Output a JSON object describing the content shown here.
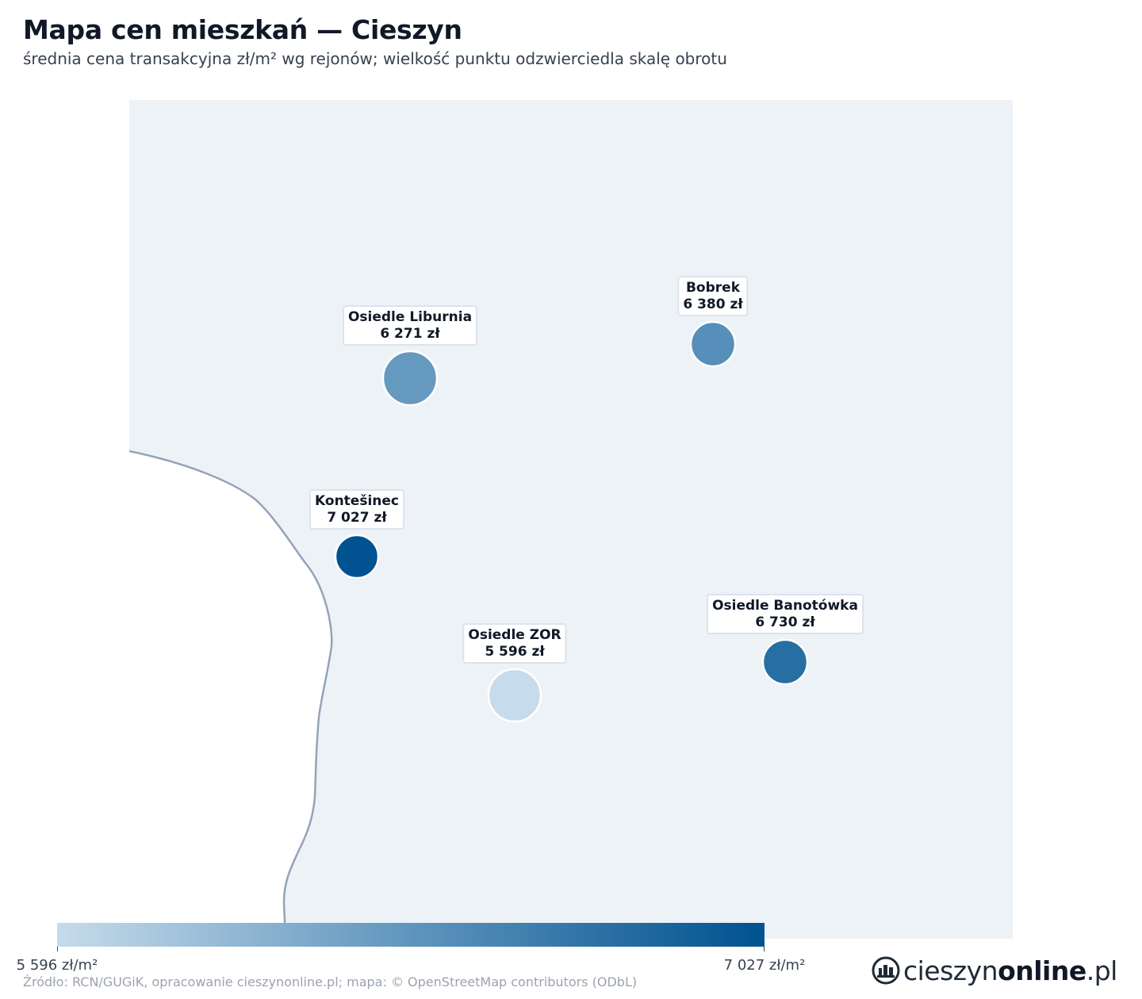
{
  "title": "Mapa cen mieszkań — Cieszyn",
  "subtitle": "średnia cena transakcyjna zł/m² wg rejonów; wielkość punktu odzwierciedla skalę obrotu",
  "colors": {
    "map_background": "#edf2f7",
    "border_line": "#94a3b8",
    "scale_low": "#c6dbeb",
    "scale_mid": "#5f95bd",
    "scale_high": "#005290"
  },
  "chart_data": {
    "type": "scatter",
    "points": [
      {
        "name": "Osiedle Liburnia",
        "price_label": "6 271 zł",
        "value": 6271,
        "turnover_level": "large"
      },
      {
        "name": "Bobrek",
        "price_label": "6 380 zł",
        "value": 6380,
        "turnover_level": "medium"
      },
      {
        "name": "Kontešinec",
        "price_label": "7 027 zł",
        "value": 7027,
        "turnover_level": "medium"
      },
      {
        "name": "Osiedle ZOR",
        "price_label": "5 596 zł",
        "value": 5596,
        "turnover_level": "large"
      },
      {
        "name": "Osiedle Banotówka",
        "price_label": "6 730 zł",
        "value": 6730,
        "turnover_level": "medium"
      }
    ],
    "color_scale": {
      "min": 5596,
      "max": 7027,
      "min_label": "5 596 zł/m²",
      "max_label": "7 027 zł/m²"
    }
  },
  "source": "Źródło: RCN/GUGiK, opracowanie cieszynonline.pl; mapa: © OpenStreetMap contributors (ODbL)",
  "brand": {
    "prefix": "cieszyn",
    "bold": "online",
    "suffix": ".pl",
    "icon": "cieszyn-logo-icon"
  }
}
